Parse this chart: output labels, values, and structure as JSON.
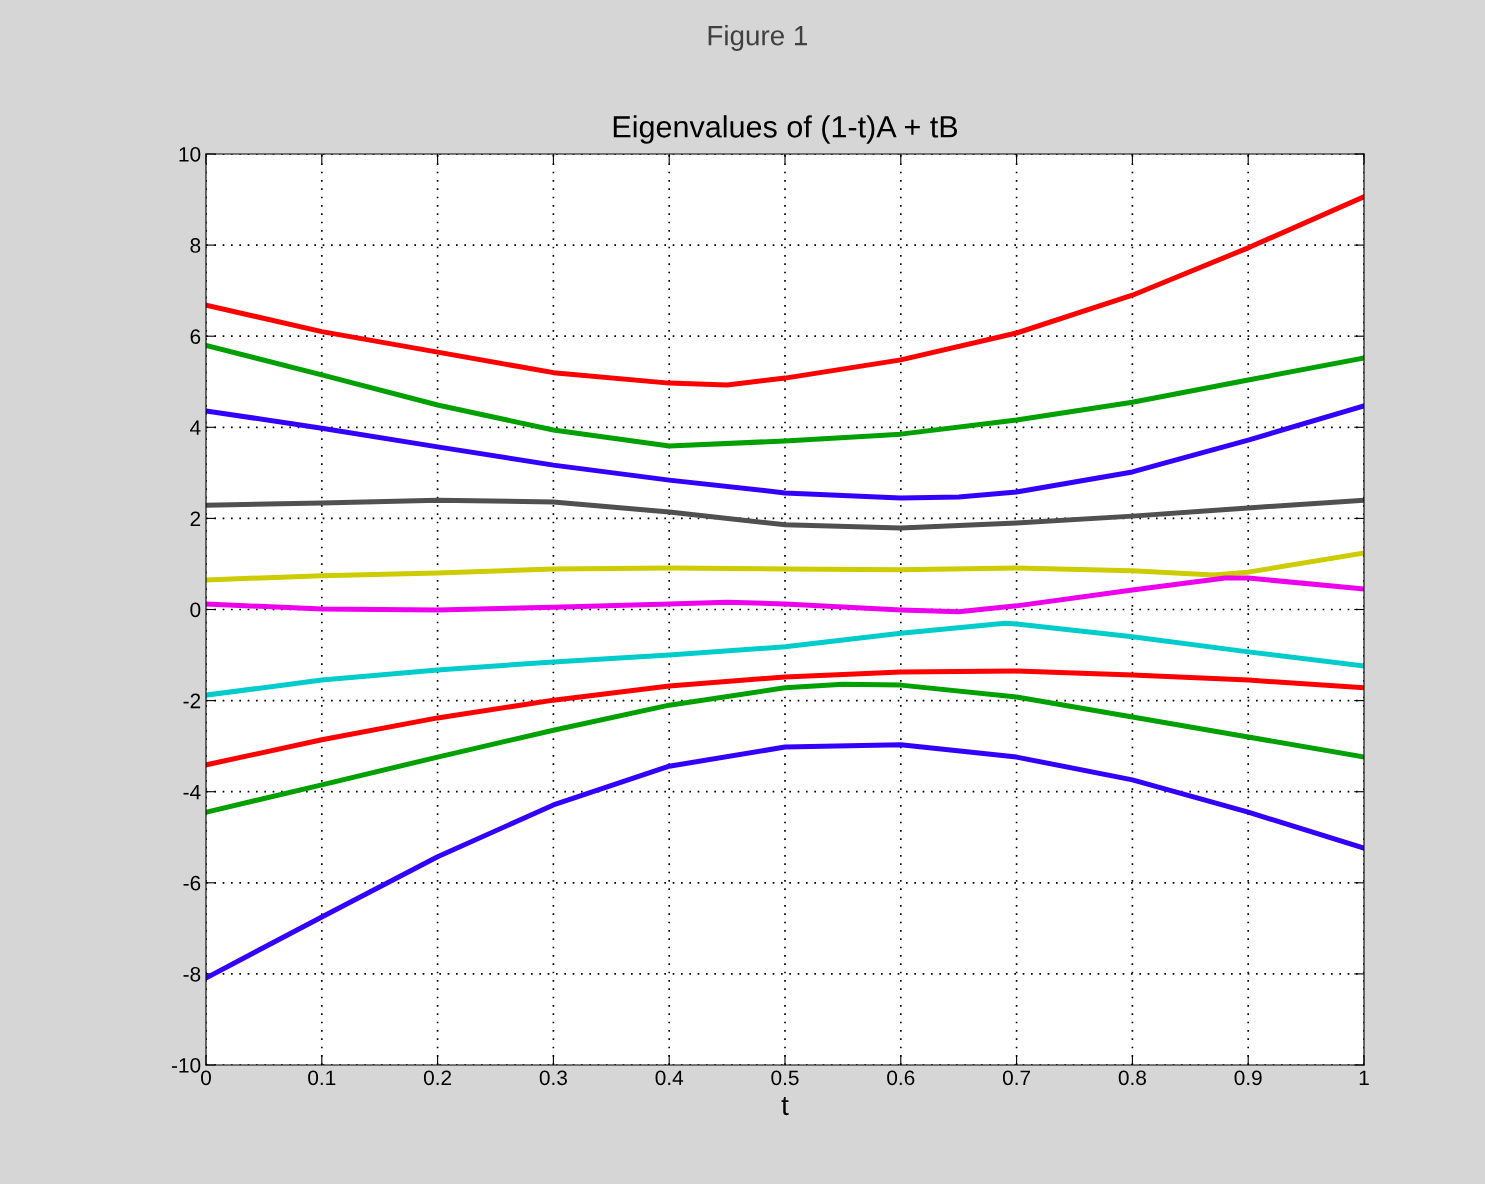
{
  "chart_data": {
    "type": "line",
    "title": "Eigenvalues of (1-t)A + tB",
    "xlabel": "t",
    "annotations": [
      "Figure 1"
    ],
    "xlim": [
      0,
      1
    ],
    "xticks": [
      0,
      0.1,
      0.2,
      0.3,
      0.4,
      0.5,
      0.6,
      0.7,
      0.8,
      0.9,
      1
    ],
    "ylim": [
      -10,
      10
    ],
    "yticks": [
      -10,
      -8,
      -6,
      -4,
      -2,
      0,
      2,
      4,
      6,
      8,
      10
    ],
    "grid": true,
    "line_style": "solid",
    "series": [
      {
        "color": "#ff0000",
        "x": [
          0,
          0.1,
          0.2,
          0.3,
          0.4,
          0.45,
          0.5,
          0.6,
          0.7,
          0.8,
          0.9,
          1
        ],
        "values": [
          6.68,
          6.1,
          5.65,
          5.2,
          4.97,
          4.93,
          5.08,
          5.48,
          6.07,
          6.9,
          7.94,
          9.06
        ]
      },
      {
        "color": "#00a000",
        "x": [
          0,
          0.1,
          0.2,
          0.3,
          0.4,
          0.5,
          0.6,
          0.7,
          0.8,
          0.9,
          1
        ],
        "values": [
          5.8,
          5.15,
          4.49,
          3.94,
          3.59,
          3.7,
          3.85,
          4.16,
          4.55,
          5.04,
          5.52
        ]
      },
      {
        "color": "#3300ff",
        "x": [
          0,
          0.1,
          0.2,
          0.3,
          0.4,
          0.5,
          0.6,
          0.65,
          0.7,
          0.8,
          0.9,
          1
        ],
        "values": [
          4.36,
          3.98,
          3.57,
          3.17,
          2.84,
          2.56,
          2.45,
          2.47,
          2.58,
          3.02,
          3.72,
          4.47
        ]
      },
      {
        "color": "#505050",
        "x": [
          0,
          0.1,
          0.2,
          0.3,
          0.4,
          0.5,
          0.6,
          0.7,
          0.8,
          0.9,
          1
        ],
        "values": [
          2.29,
          2.34,
          2.4,
          2.36,
          2.14,
          1.86,
          1.79,
          1.9,
          2.05,
          2.23,
          2.4
        ]
      },
      {
        "color": "#cccc00",
        "x": [
          0,
          0.1,
          0.2,
          0.3,
          0.4,
          0.5,
          0.6,
          0.7,
          0.8,
          0.87,
          0.9,
          1
        ],
        "values": [
          0.65,
          0.74,
          0.8,
          0.89,
          0.91,
          0.89,
          0.87,
          0.91,
          0.85,
          0.76,
          0.82,
          1.24
        ]
      },
      {
        "color": "#ee00ee",
        "x": [
          0,
          0.1,
          0.2,
          0.3,
          0.4,
          0.45,
          0.5,
          0.6,
          0.65,
          0.7,
          0.8,
          0.88,
          0.9,
          1
        ],
        "values": [
          0.12,
          0.01,
          -0.01,
          0.05,
          0.12,
          0.16,
          0.12,
          -0.01,
          -0.05,
          0.08,
          0.43,
          0.69,
          0.69,
          0.45
        ]
      },
      {
        "color": "#00cccc",
        "x": [
          0,
          0.1,
          0.2,
          0.3,
          0.4,
          0.5,
          0.6,
          0.69,
          0.7,
          0.8,
          0.9,
          1
        ],
        "values": [
          -1.88,
          -1.55,
          -1.33,
          -1.15,
          -1.0,
          -0.82,
          -0.52,
          -0.3,
          -0.32,
          -0.6,
          -0.93,
          -1.24
        ]
      },
      {
        "color": "#ff0000",
        "x": [
          0,
          0.1,
          0.2,
          0.3,
          0.4,
          0.5,
          0.6,
          0.7,
          0.8,
          0.9,
          1
        ],
        "values": [
          -3.41,
          -2.86,
          -2.38,
          -1.99,
          -1.68,
          -1.48,
          -1.37,
          -1.35,
          -1.44,
          -1.55,
          -1.72
        ]
      },
      {
        "color": "#00a000",
        "x": [
          0,
          0.1,
          0.2,
          0.3,
          0.4,
          0.5,
          0.55,
          0.6,
          0.7,
          0.8,
          0.9,
          1
        ],
        "values": [
          -4.45,
          -3.85,
          -3.24,
          -2.65,
          -2.1,
          -1.72,
          -1.64,
          -1.66,
          -1.92,
          -2.36,
          -2.8,
          -3.24
        ]
      },
      {
        "color": "#3300ff",
        "x": [
          0,
          0.1,
          0.2,
          0.3,
          0.4,
          0.5,
          0.6,
          0.7,
          0.8,
          0.9,
          1
        ],
        "values": [
          -8.09,
          -6.75,
          -5.43,
          -4.29,
          -3.44,
          -3.02,
          -2.97,
          -3.24,
          -3.74,
          -4.45,
          -5.24
        ]
      }
    ]
  }
}
